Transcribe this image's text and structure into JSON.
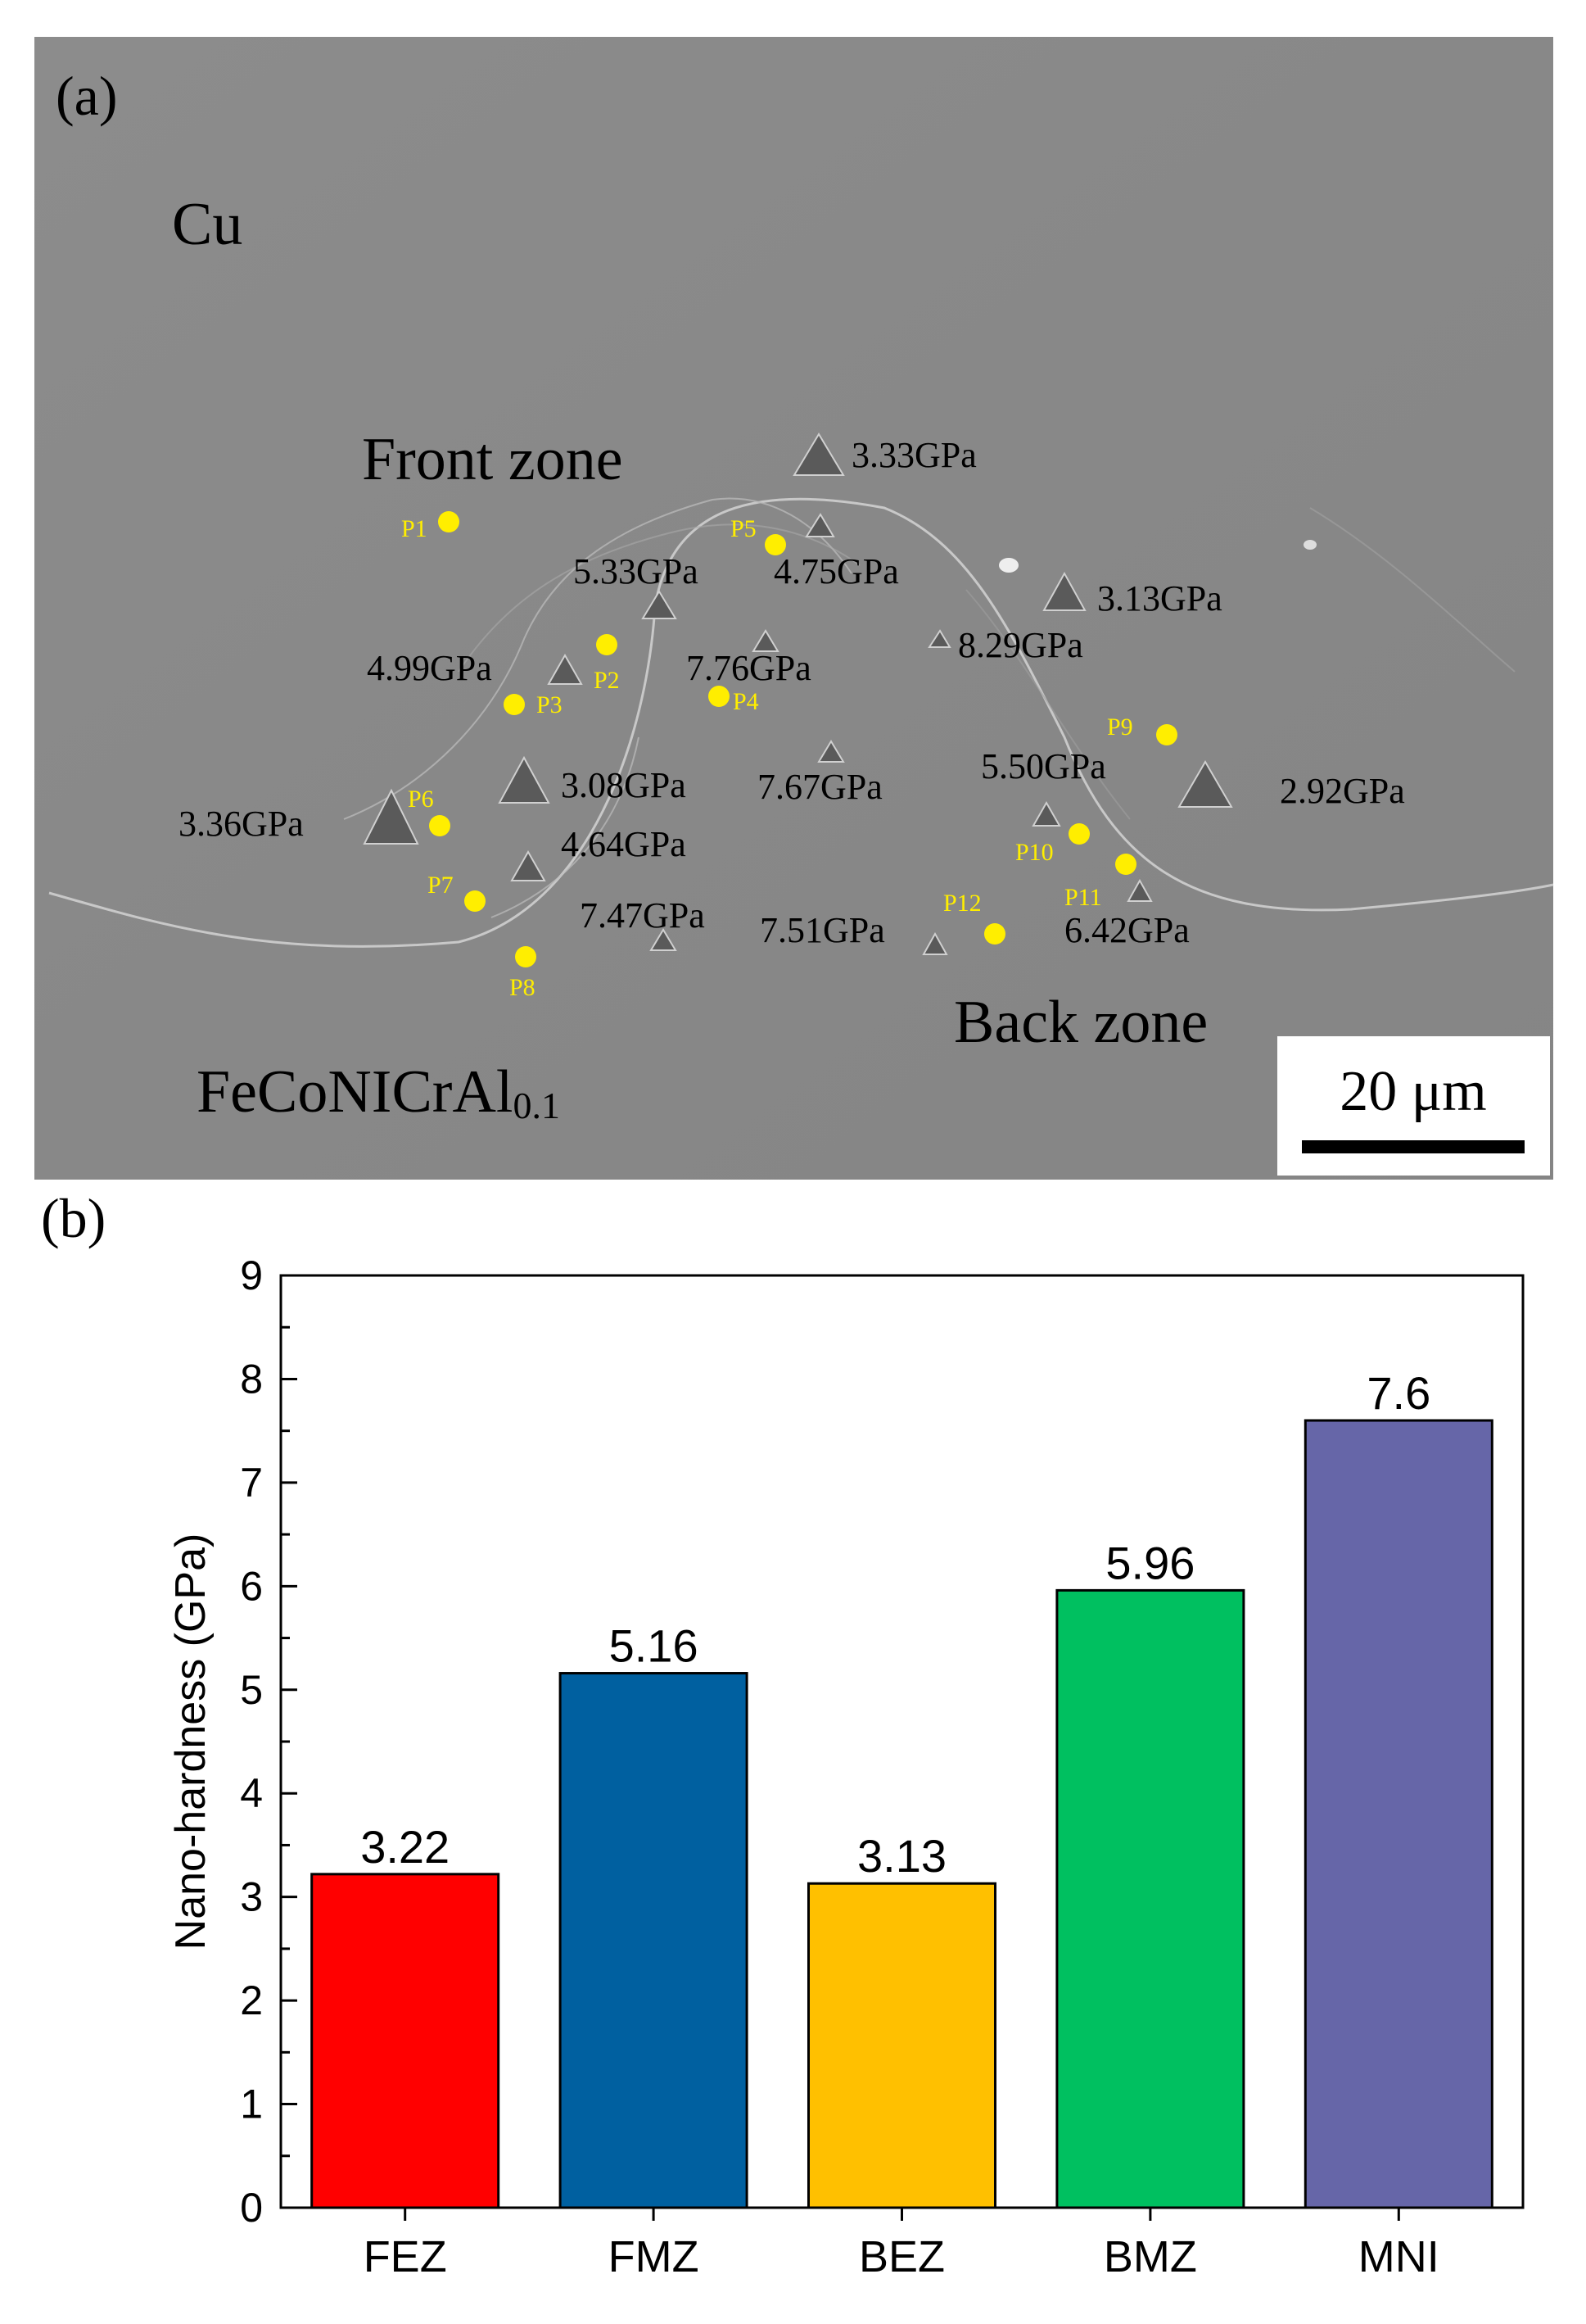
{
  "panel_a": {
    "label": "(a)",
    "region_labels": {
      "cu": "Cu",
      "front_zone": "Front zone",
      "back_zone": "Back zone",
      "alloy_main": "FeCoNICrAl",
      "alloy_sub": "0.1"
    },
    "hardness_readings": [
      "3.33GPa",
      "5.33GPa",
      "4.75GPa",
      "3.13GPa",
      "8.29GPa",
      "4.99GPa",
      "7.76GPa",
      "3.08GPa",
      "7.67GPa",
      "5.50GPa",
      "2.92GPa",
      "3.36GPa",
      "4.64GPa",
      "7.47GPa",
      "7.51GPa",
      "6.42GPa"
    ],
    "points": [
      "P1",
      "P2",
      "P3",
      "P4",
      "P5",
      "P6",
      "P7",
      "P8",
      "P9",
      "P10",
      "P11",
      "P12"
    ],
    "scale_bar": "20 μm",
    "colors": {
      "point": "#ffee00",
      "background": "#8a8a8a"
    }
  },
  "panel_b": {
    "label": "(b)"
  },
  "chart_data": {
    "type": "bar",
    "title": "",
    "xlabel": "",
    "ylabel": "Nano-hardness (GPa)",
    "categories": [
      "FEZ",
      "FMZ",
      "BEZ",
      "BMZ",
      "MNI"
    ],
    "values": [
      3.22,
      5.16,
      3.13,
      5.96,
      7.6
    ],
    "value_labels": [
      "3.22",
      "5.16",
      "3.13",
      "5.96",
      "7.6"
    ],
    "colors": [
      "#ff0000",
      "#0060a0",
      "#ffc000",
      "#00c060",
      "#6666a8"
    ],
    "ylim": [
      0,
      9
    ],
    "yticks": [
      0,
      1,
      2,
      3,
      4,
      5,
      6,
      7,
      8,
      9
    ],
    "ytick_labels": [
      "0",
      "1",
      "2",
      "3",
      "4",
      "5",
      "6",
      "7",
      "8",
      "9"
    ],
    "grid": false
  }
}
